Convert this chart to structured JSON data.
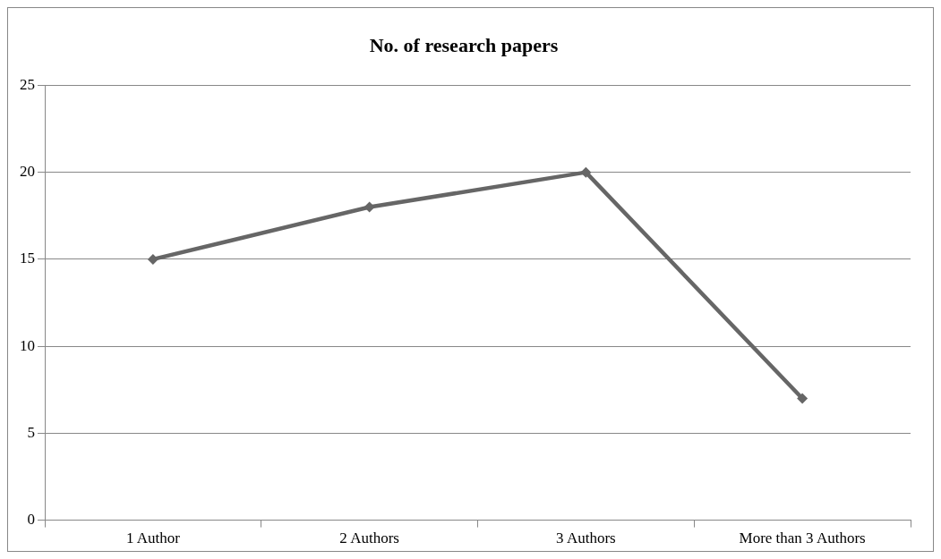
{
  "chart_data": {
    "type": "line",
    "title": "No. of research papers",
    "categories": [
      "1 Author",
      "2 Authors",
      "3 Authors",
      "More than 3 Authors"
    ],
    "series": [
      {
        "color": "#666666",
        "values": [
          15,
          18,
          20,
          7
        ]
      }
    ],
    "ylim": [
      0,
      25
    ],
    "yticks": [
      0,
      5,
      10,
      15,
      20,
      25
    ],
    "grid": "y",
    "legend": false,
    "marker": "diamond",
    "line_style": "solid"
  }
}
